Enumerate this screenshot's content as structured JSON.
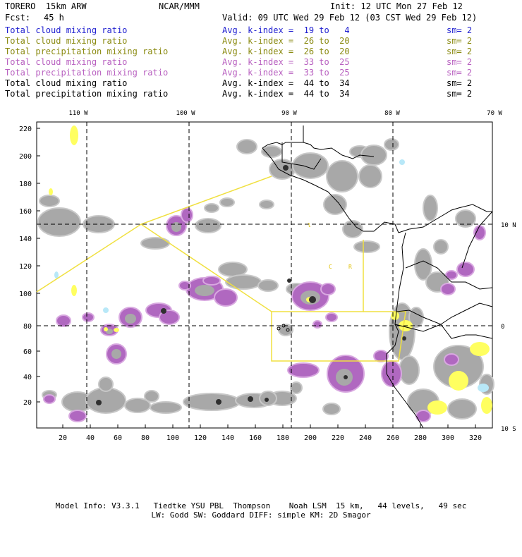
{
  "header": {
    "model": "TORERO  15km ARW",
    "org": "NCAR/MMM",
    "init": "Init: 12 UTC Mon 27 Feb 12",
    "fcst_label": "Fcst:",
    "fcst_hours": "45 h",
    "valid": "Valid: 09 UTC Wed 29 Feb 12 (03 CST Wed 29 Feb 12)"
  },
  "legend": [
    {
      "field": "Total cloud mixing ratio",
      "kidx": "Avg. k-index =  19 to   4",
      "sm": "sm= 2",
      "color": "#2020d0"
    },
    {
      "field": "Total cloud mixing ratio",
      "kidx": "Avg. k-index =  26 to  20",
      "sm": "sm= 2",
      "color": "#8a8a10"
    },
    {
      "field": "Total precipitation mixing ratio",
      "kidx": "Avg. k-index =  26 to  20",
      "sm": "sm= 2",
      "color": "#8a8a10"
    },
    {
      "field": "Total cloud mixing ratio",
      "kidx": "Avg. k-index =  33 to  25",
      "sm": "sm= 2",
      "color": "#b860c0"
    },
    {
      "field": "Total precipitation mixing ratio",
      "kidx": "Avg. k-index =  33 to  25",
      "sm": "sm= 2",
      "color": "#b860c0"
    },
    {
      "field": "Total cloud mixing ratio",
      "kidx": "Avg. k-index =  44 to  34",
      "sm": "sm= 2",
      "color": "#000000"
    },
    {
      "field": "Total precipitation mixing ratio",
      "kidx": "Avg. k-index =  44 to  34",
      "sm": "sm= 2",
      "color": "#000000"
    }
  ],
  "map": {
    "lon_labels": [
      "110 W",
      "100 W",
      "90 W",
      "80 W",
      "70 W"
    ],
    "lat_labels": [
      "10 N",
      "0",
      "10 S"
    ],
    "x_ticks": [
      "20",
      "40",
      "60",
      "80",
      "100",
      "120",
      "140",
      "160",
      "180",
      "200",
      "220",
      "240",
      "260",
      "280",
      "300",
      "320"
    ],
    "y_ticks": [
      "20",
      "40",
      "60",
      "80",
      "100",
      "120",
      "140",
      "160",
      "180",
      "200",
      "220"
    ],
    "point_labels": [
      "C",
      "R"
    ],
    "colors": {
      "gray": "#a8a8a8",
      "dark": "#303030",
      "purple": "#b068c0",
      "yellow": "#ffff60",
      "lightblue": "#b8e8f8",
      "domain_line": "#f0e040",
      "coast": "#000000"
    }
  },
  "footer": {
    "line1": "Model Info: V3.3.1   Tiedtke YSU PBL  Thompson    Noah LSM  15 km,   44 levels,   49 sec",
    "line2": "LW: Godd SW: Goddard DIFF: simple KM: 2D Smagor"
  }
}
